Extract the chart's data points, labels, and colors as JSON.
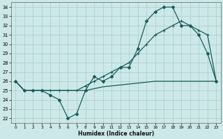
{
  "xlabel": "Humidex (Indice chaleur)",
  "xlim": [
    -0.5,
    23.5
  ],
  "ylim": [
    21.5,
    34.5
  ],
  "yticks": [
    22,
    23,
    24,
    25,
    26,
    27,
    28,
    29,
    30,
    31,
    32,
    33,
    34
  ],
  "xticks": [
    0,
    1,
    2,
    3,
    4,
    5,
    6,
    7,
    8,
    9,
    10,
    11,
    12,
    13,
    14,
    15,
    16,
    17,
    18,
    19,
    20,
    21,
    22,
    23
  ],
  "background_color": "#cce8e8",
  "grid_color": "#aacccc",
  "line_color": "#1a5c5c",
  "series_zigzag": {
    "x": [
      0,
      1,
      2,
      3,
      4,
      5,
      6,
      7,
      8,
      9,
      10,
      11,
      12,
      13,
      14,
      15,
      16,
      17,
      18,
      19,
      20,
      21,
      22,
      23
    ],
    "y": [
      26.0,
      25.0,
      25.0,
      25.0,
      24.5,
      24.0,
      22.0,
      22.5,
      25.0,
      26.5,
      26.0,
      26.5,
      27.5,
      27.5,
      29.5,
      32.5,
      33.5,
      34.0,
      34.0,
      32.0,
      32.0,
      31.0,
      29.0,
      26.0
    ]
  },
  "series_smooth": {
    "x": [
      0,
      1,
      2,
      3,
      4,
      5,
      6,
      7,
      8,
      9,
      10,
      11,
      12,
      13,
      14,
      15,
      16,
      17,
      18,
      19,
      20,
      21,
      22,
      23
    ],
    "y": [
      26.0,
      25.0,
      25.0,
      25.0,
      25.0,
      25.0,
      25.0,
      25.0,
      25.5,
      26.0,
      26.5,
      27.0,
      27.5,
      28.0,
      29.0,
      30.0,
      31.0,
      31.5,
      32.0,
      32.5,
      32.0,
      31.5,
      31.0,
      26.0
    ]
  },
  "series_flat": {
    "x": [
      0,
      1,
      2,
      3,
      4,
      5,
      6,
      7,
      8,
      9,
      10,
      11,
      12,
      13,
      14,
      15,
      16,
      17,
      18,
      19,
      20,
      21,
      22,
      23
    ],
    "y": [
      26.0,
      25.0,
      25.0,
      25.0,
      25.0,
      25.0,
      25.0,
      25.0,
      25.0,
      25.2,
      25.4,
      25.5,
      25.6,
      25.7,
      25.8,
      25.9,
      26.0,
      26.0,
      26.0,
      26.0,
      26.0,
      26.0,
      26.0,
      26.0
    ]
  }
}
